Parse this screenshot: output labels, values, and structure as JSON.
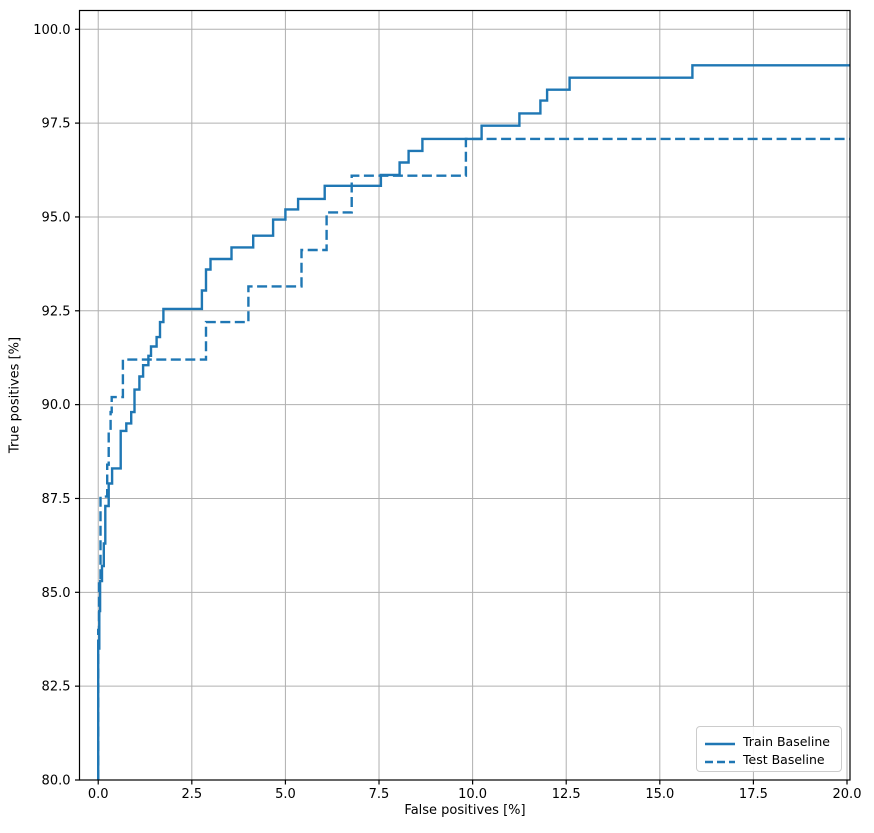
{
  "chart_data": {
    "type": "line",
    "subtype": "step-roc",
    "title": "",
    "xlabel": "False positives [%]",
    "ylabel": "True positives [%]",
    "xlim": [
      -0.5,
      20.08
    ],
    "ylim": [
      80,
      100.5
    ],
    "grid": true,
    "grid_color": "#b0b0b0",
    "spine_color": "#000000",
    "line_color": "#1f77b4",
    "xticks": {
      "values": [
        0,
        2.5,
        5,
        7.5,
        10,
        12.5,
        15,
        17.5,
        20
      ],
      "labels": [
        "0.0",
        "2.5",
        "5.0",
        "7.5",
        "10.0",
        "12.5",
        "15.0",
        "17.5",
        "20.0"
      ]
    },
    "yticks": {
      "values": [
        80,
        82.5,
        85,
        87.5,
        90,
        92.5,
        95,
        97.5,
        100
      ],
      "labels": [
        "80.0",
        "82.5",
        "85.0",
        "87.5",
        "90.0",
        "92.5",
        "95.0",
        "97.5",
        "100.0"
      ]
    },
    "legend": {
      "position": "lower right",
      "entries": [
        {
          "label": "Train Baseline",
          "style": "solid"
        },
        {
          "label": "Test Baseline",
          "style": "dashed"
        }
      ]
    },
    "series": [
      {
        "name": "Train Baseline",
        "style": "solid",
        "points": [
          [
            0,
            80
          ],
          [
            0,
            83.5
          ],
          [
            0.03,
            83.5
          ],
          [
            0.03,
            84.5
          ],
          [
            0.05,
            84.5
          ],
          [
            0.05,
            85.3
          ],
          [
            0.1,
            85.3
          ],
          [
            0.1,
            85.7
          ],
          [
            0.15,
            85.7
          ],
          [
            0.15,
            86.3
          ],
          [
            0.19,
            86.3
          ],
          [
            0.19,
            87.3
          ],
          [
            0.28,
            87.3
          ],
          [
            0.28,
            87.9
          ],
          [
            0.37,
            87.9
          ],
          [
            0.37,
            88.3
          ],
          [
            0.6,
            88.3
          ],
          [
            0.6,
            89.3
          ],
          [
            0.75,
            89.3
          ],
          [
            0.75,
            89.5
          ],
          [
            0.88,
            89.5
          ],
          [
            0.88,
            89.8
          ],
          [
            0.97,
            89.8
          ],
          [
            0.97,
            90.4
          ],
          [
            1.1,
            90.4
          ],
          [
            1.1,
            90.75
          ],
          [
            1.2,
            90.75
          ],
          [
            1.2,
            91.05
          ],
          [
            1.34,
            91.05
          ],
          [
            1.34,
            91.3
          ],
          [
            1.41,
            91.3
          ],
          [
            1.41,
            91.55
          ],
          [
            1.56,
            91.55
          ],
          [
            1.56,
            91.8
          ],
          [
            1.65,
            91.8
          ],
          [
            1.65,
            92.2
          ],
          [
            1.74,
            92.2
          ],
          [
            1.74,
            92.55
          ],
          [
            2.77,
            92.55
          ],
          [
            2.77,
            93.04
          ],
          [
            2.88,
            93.04
          ],
          [
            2.88,
            93.6
          ],
          [
            3.0,
            93.6
          ],
          [
            3.0,
            93.88
          ],
          [
            3.56,
            93.88
          ],
          [
            3.56,
            94.19
          ],
          [
            4.14,
            94.19
          ],
          [
            4.14,
            94.5
          ],
          [
            4.67,
            94.5
          ],
          [
            4.67,
            94.93
          ],
          [
            5.0,
            94.93
          ],
          [
            5.0,
            95.2
          ],
          [
            5.34,
            95.2
          ],
          [
            5.34,
            95.48
          ],
          [
            6.05,
            95.48
          ],
          [
            6.05,
            95.83
          ],
          [
            7.55,
            95.83
          ],
          [
            7.55,
            96.12
          ],
          [
            8.05,
            96.12
          ],
          [
            8.05,
            96.45
          ],
          [
            8.29,
            96.45
          ],
          [
            8.29,
            96.76
          ],
          [
            8.66,
            96.76
          ],
          [
            8.66,
            97.08
          ],
          [
            10.24,
            97.08
          ],
          [
            10.24,
            97.43
          ],
          [
            11.25,
            97.43
          ],
          [
            11.25,
            97.76
          ],
          [
            11.81,
            97.76
          ],
          [
            11.81,
            98.1
          ],
          [
            11.99,
            98.1
          ],
          [
            11.99,
            98.39
          ],
          [
            12.59,
            98.39
          ],
          [
            12.59,
            98.71
          ],
          [
            15.87,
            98.71
          ],
          [
            15.87,
            99.04
          ],
          [
            20.08,
            99.04
          ]
        ]
      },
      {
        "name": "Test Baseline",
        "style": "dashed",
        "points": [
          [
            0,
            80
          ],
          [
            0,
            84
          ],
          [
            0.02,
            84
          ],
          [
            0.02,
            85.3
          ],
          [
            0.06,
            85.3
          ],
          [
            0.06,
            87.55
          ],
          [
            0.24,
            87.55
          ],
          [
            0.24,
            88.4
          ],
          [
            0.28,
            88.4
          ],
          [
            0.28,
            89.3
          ],
          [
            0.33,
            89.3
          ],
          [
            0.33,
            89.8
          ],
          [
            0.36,
            89.8
          ],
          [
            0.36,
            90.2
          ],
          [
            0.66,
            90.2
          ],
          [
            0.66,
            91.2
          ],
          [
            2.88,
            91.2
          ],
          [
            2.88,
            92.2
          ],
          [
            4.01,
            92.2
          ],
          [
            4.01,
            93.15
          ],
          [
            5.43,
            93.15
          ],
          [
            5.43,
            94.12
          ],
          [
            6.1,
            94.12
          ],
          [
            6.1,
            95.12
          ],
          [
            6.77,
            95.12
          ],
          [
            6.77,
            96.1
          ],
          [
            9.82,
            96.1
          ],
          [
            9.82,
            97.08
          ],
          [
            20.08,
            97.08
          ]
        ]
      }
    ]
  }
}
